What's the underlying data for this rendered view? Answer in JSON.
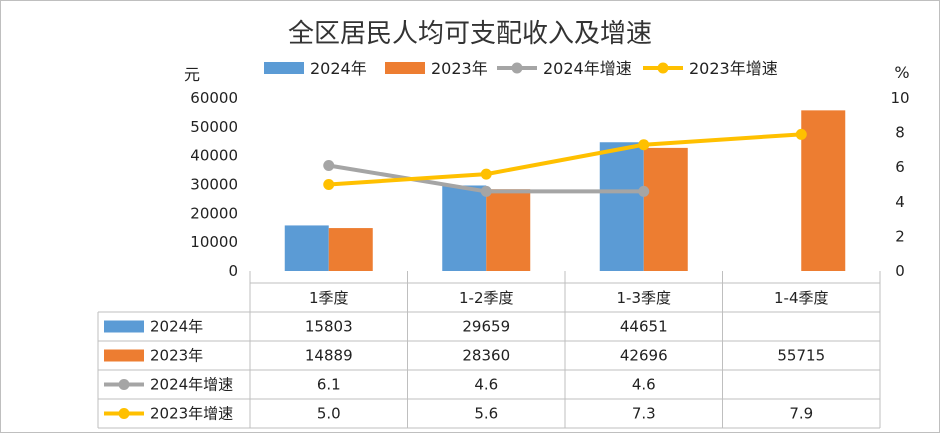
{
  "chart_data": {
    "type": "bar",
    "title": "全区居民人均可支配收入及增速",
    "categories": [
      "1季度",
      "1-2季度",
      "1-3季度",
      "1-4季度"
    ],
    "left_axis": {
      "unit": "元",
      "range": [
        0,
        60000
      ],
      "ticks": [
        "60000",
        "50000",
        "40000",
        "30000",
        "20000",
        "10000",
        "0"
      ]
    },
    "right_axis": {
      "unit": "%",
      "range": [
        0,
        10
      ],
      "ticks": [
        "10",
        "8",
        "6",
        "4",
        "2",
        "0"
      ]
    },
    "series": [
      {
        "name": "2024年",
        "kind": "bar",
        "axis": "left",
        "color": "#5b9bd5",
        "values": [
          15803,
          29659,
          44651,
          null
        ],
        "labels": [
          "15803",
          "29659",
          "44651",
          ""
        ]
      },
      {
        "name": "2023年",
        "kind": "bar",
        "axis": "left",
        "color": "#ed7d31",
        "values": [
          14889,
          28360,
          42696,
          55715
        ],
        "labels": [
          "14889",
          "28360",
          "42696",
          "55715"
        ]
      },
      {
        "name": "2024年增速",
        "kind": "line",
        "axis": "right",
        "color": "#a5a5a5",
        "values": [
          6.1,
          4.6,
          4.6,
          null
        ],
        "labels": [
          "6.1",
          "4.6",
          "4.6",
          ""
        ]
      },
      {
        "name": "2023年增速",
        "kind": "line",
        "axis": "right",
        "color": "#ffc000",
        "values": [
          5.0,
          5.6,
          7.3,
          7.9
        ],
        "labels": [
          "5.0",
          "5.6",
          "7.3",
          "7.9"
        ]
      }
    ],
    "grid": false,
    "legend": "top",
    "data_table": true
  }
}
